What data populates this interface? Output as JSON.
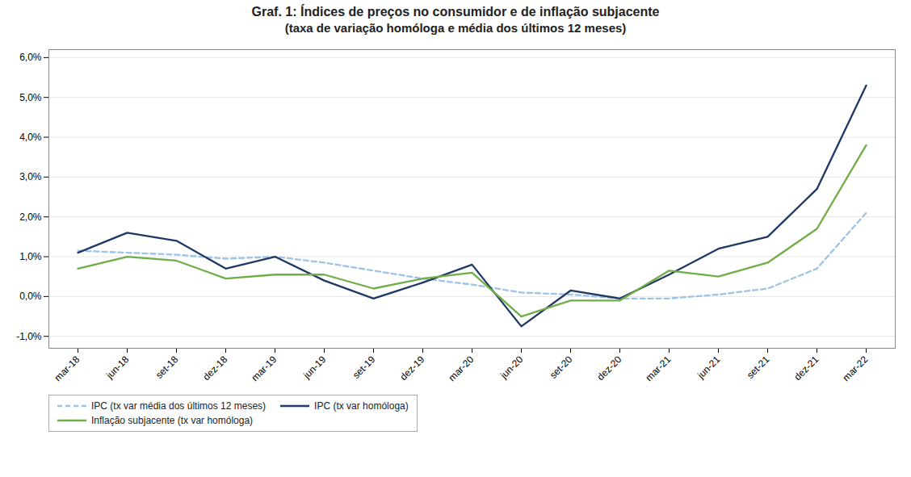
{
  "chart_data": {
    "type": "line",
    "title": "Graf. 1: Índices de preços no consumidor e de inflação subjacente",
    "subtitle": "(taxa de variação homóloga e média dos últimos 12 meses)",
    "categories": [
      "mar-18",
      "jun-18",
      "set-18",
      "dez-18",
      "mar-19",
      "jun-19",
      "set-19",
      "dez-19",
      "mar-20",
      "jun-20",
      "set-20",
      "dez-20",
      "mar-21",
      "jun-21",
      "set-21",
      "dez-21",
      "mar-22"
    ],
    "series": [
      {
        "name": "IPC (tx var média dos últimos 12 meses)",
        "color": "#9dc3e6",
        "line_style": "dashed",
        "values": [
          1.15,
          1.1,
          1.05,
          0.95,
          1.0,
          0.85,
          0.65,
          0.45,
          0.3,
          0.1,
          0.05,
          -0.05,
          -0.05,
          0.05,
          0.2,
          0.7,
          2.1
        ]
      },
      {
        "name": "IPC (tx var homóloga)",
        "color": "#1f3864",
        "line_style": "solid",
        "values": [
          1.1,
          1.6,
          1.4,
          0.7,
          1.0,
          0.4,
          -0.05,
          0.35,
          0.8,
          -0.75,
          0.15,
          -0.05,
          0.55,
          1.2,
          1.5,
          2.7,
          5.3
        ]
      },
      {
        "name": "Inflação subjacente (tx var homóloga)",
        "color": "#70ad47",
        "line_style": "solid",
        "values": [
          0.7,
          1.0,
          0.9,
          0.45,
          0.55,
          0.55,
          0.2,
          0.45,
          0.6,
          -0.5,
          -0.1,
          -0.1,
          0.65,
          0.5,
          0.85,
          1.7,
          3.8
        ]
      }
    ],
    "ylim": [
      -1.3,
      6.2
    ],
    "yticks": [
      {
        "value": -1.0,
        "label": "-1,0%"
      },
      {
        "value": 0.0,
        "label": "0,0%"
      },
      {
        "value": 1.0,
        "label": "1,0%"
      },
      {
        "value": 2.0,
        "label": "2,0%"
      },
      {
        "value": 3.0,
        "label": "3,0%"
      },
      {
        "value": 4.0,
        "label": "4,0%"
      },
      {
        "value": 5.0,
        "label": "5,0%"
      },
      {
        "value": 6.0,
        "label": "6,0%"
      }
    ],
    "grid": true,
    "legend": "lower left"
  }
}
